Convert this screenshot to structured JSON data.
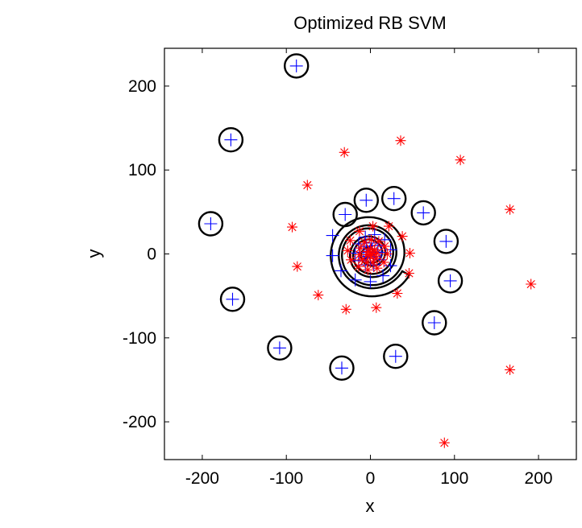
{
  "chart_data": {
    "type": "scatter",
    "title": "Optimized RB SVM",
    "xlabel": "x",
    "ylabel": "y",
    "xlim": [
      -245,
      245
    ],
    "ylim": [
      -245,
      245
    ],
    "xticks": [
      -200,
      -100,
      0,
      100,
      200
    ],
    "yticks": [
      -200,
      -100,
      0,
      100,
      200
    ],
    "xtick_labels": [
      "-200",
      "-100",
      "0",
      "100",
      "200"
    ],
    "ytick_labels": [
      "-200",
      "-100",
      "0",
      "100",
      "200"
    ],
    "grid": false,
    "legend": "none",
    "series": [
      {
        "marker": "plus",
        "color": "#0000ff",
        "points": [
          [
            -88,
            224
          ],
          [
            -166,
            136
          ],
          [
            -190,
            36
          ],
          [
            -164,
            -54
          ],
          [
            -108,
            -112
          ],
          [
            -34,
            -136
          ],
          [
            30,
            -122
          ],
          [
            76,
            -82
          ],
          [
            95,
            -32
          ],
          [
            90,
            15
          ],
          [
            63,
            49
          ],
          [
            28,
            66
          ],
          [
            -5,
            64
          ],
          [
            -30,
            47
          ],
          [
            -45,
            22
          ],
          [
            -45,
            -2
          ],
          [
            -35,
            -20
          ],
          [
            -18,
            -31
          ],
          [
            0,
            -33
          ],
          [
            15,
            -26
          ],
          [
            24,
            -14
          ],
          [
            24,
            5
          ],
          [
            17,
            17
          ],
          [
            5,
            23
          ],
          [
            -6,
            20
          ],
          [
            -14,
            12
          ],
          [
            -18,
            1
          ],
          [
            -14,
            -8
          ],
          [
            -6,
            -13
          ],
          [
            4,
            -13
          ],
          [
            11,
            -7
          ],
          [
            13,
            2
          ],
          [
            9,
            10
          ],
          [
            1,
            13
          ],
          [
            -5,
            9
          ],
          [
            -8,
            2
          ],
          [
            -5,
            -3
          ],
          [
            0,
            -5
          ],
          [
            4,
            -3
          ],
          [
            5,
            2
          ],
          [
            2,
            5
          ],
          [
            -1,
            3
          ]
        ]
      },
      {
        "marker": "asterisk",
        "color": "#ff0000",
        "points": [
          [
            36,
            135
          ],
          [
            107,
            112
          ],
          [
            -31,
            121
          ],
          [
            -75,
            82
          ],
          [
            166,
            53
          ],
          [
            -93,
            32
          ],
          [
            -87,
            -15
          ],
          [
            191,
            -36
          ],
          [
            -62,
            -49
          ],
          [
            -29,
            -66
          ],
          [
            7,
            -64
          ],
          [
            32,
            -47
          ],
          [
            46,
            -23
          ],
          [
            47,
            1
          ],
          [
            38,
            21
          ],
          [
            22,
            33
          ],
          [
            3,
            33
          ],
          [
            -13,
            27
          ],
          [
            -24,
            16
          ],
          [
            -27,
            4
          ],
          [
            -23,
            -7
          ],
          [
            -14,
            -15
          ],
          [
            -3,
            -19
          ],
          [
            8,
            -17
          ],
          [
            16,
            -10
          ],
          [
            20,
            0
          ],
          [
            17,
            9
          ],
          [
            10,
            15
          ],
          [
            1,
            17
          ],
          [
            -7,
            14
          ],
          [
            -12,
            7
          ],
          [
            -13,
            -1
          ],
          [
            -10,
            -7
          ],
          [
            -4,
            -10
          ],
          [
            3,
            -10
          ],
          [
            7,
            -5
          ],
          [
            8,
            1
          ],
          [
            5,
            5
          ],
          [
            0,
            6
          ],
          [
            -3,
            3
          ],
          [
            -3,
            -1
          ],
          [
            0,
            -2
          ],
          [
            2,
            0
          ],
          [
            88,
            -225
          ],
          [
            166,
            -138
          ]
        ]
      }
    ],
    "contours": {
      "type": "decision-boundary",
      "color": "#000000",
      "rings": [
        [
          -88,
          224
        ],
        [
          -166,
          136
        ],
        [
          -190,
          36
        ],
        [
          -164,
          -54
        ],
        [
          -108,
          -112
        ],
        [
          -34,
          -136
        ],
        [
          30,
          -122
        ],
        [
          76,
          -82
        ],
        [
          95,
          -32
        ],
        [
          90,
          15
        ],
        [
          63,
          49
        ],
        [
          28,
          66
        ],
        [
          -5,
          64
        ],
        [
          -30,
          47
        ]
      ],
      "spiral": {
        "turns": 3.3
      }
    }
  }
}
